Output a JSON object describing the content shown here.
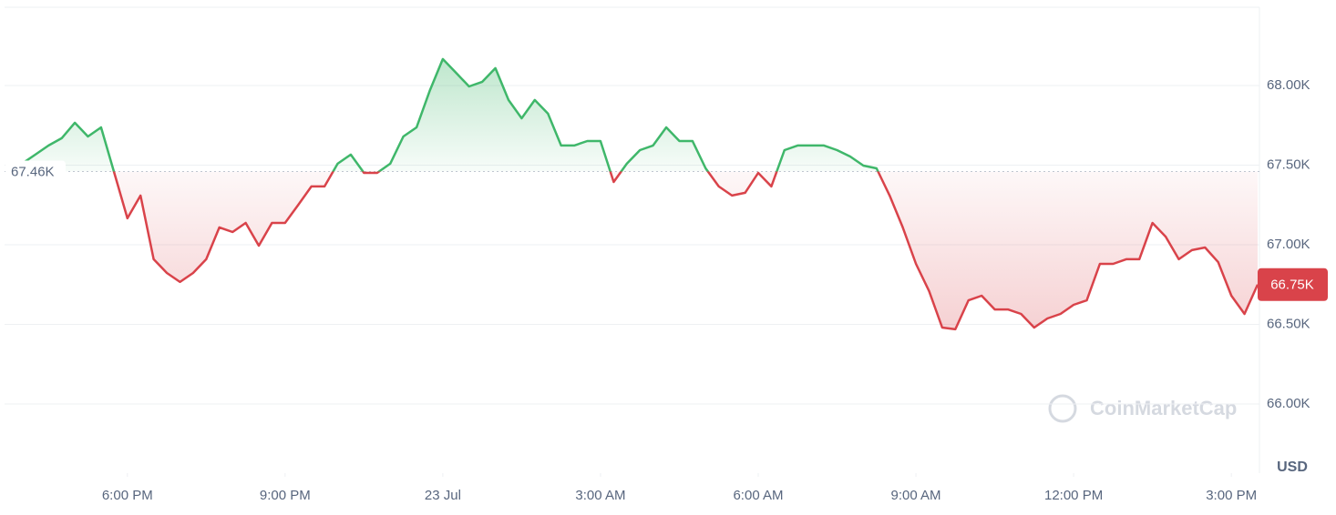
{
  "chart_data": {
    "type": "line",
    "values": [
      67480,
      67510,
      67566,
      67623,
      67669,
      67766,
      67680,
      67737,
      67451,
      67166,
      67309,
      66909,
      66823,
      66766,
      66823,
      66909,
      67109,
      67080,
      67137,
      66994,
      67137,
      67137,
      67251,
      67366,
      67366,
      67509,
      67566,
      67451,
      67451,
      67509,
      67680,
      67737,
      67966,
      68166,
      68080,
      67994,
      68023,
      68109,
      67909,
      67794,
      67909,
      67823,
      67623,
      67623,
      67651,
      67651,
      67394,
      67509,
      67594,
      67623,
      67737,
      67651,
      67651,
      67480,
      67366,
      67309,
      67326,
      67451,
      67366,
      67594,
      67623,
      67623,
      67623,
      67594,
      67554,
      67497,
      67480,
      67309,
      67109,
      66880,
      66709,
      66480,
      66469,
      66651,
      66680,
      66594,
      66594,
      66566,
      66480,
      66537,
      66566,
      66623,
      66651,
      66880,
      66880,
      66909,
      66909,
      67137,
      67051,
      66909,
      66966,
      66983,
      66891,
      66680,
      66566,
      66750
    ],
    "baseline": {
      "value": 67460,
      "label": "67.46K"
    },
    "current": {
      "value": 66750,
      "label": "66.75K"
    },
    "color_up": "#3fb76a",
    "color_down": "#d9434a",
    "ylim": [
      65566,
      68491
    ],
    "yticks": [
      {
        "value": 66000,
        "label": "66.00K"
      },
      {
        "value": 66500,
        "label": "66.50K"
      },
      {
        "value": 67000,
        "label": "67.00K"
      },
      {
        "value": 67500,
        "label": "67.50K"
      },
      {
        "value": 68000,
        "label": "68.00K"
      }
    ],
    "xlim": [
      0,
      95
    ],
    "xticks": [
      {
        "value": 9,
        "label": "6:00 PM"
      },
      {
        "value": 21,
        "label": "9:00 PM"
      },
      {
        "value": 33,
        "label": "23 Jul"
      },
      {
        "value": 45,
        "label": "3:00 AM"
      },
      {
        "value": 57,
        "label": "6:00 AM"
      },
      {
        "value": 69,
        "label": "9:00 AM"
      },
      {
        "value": 81,
        "label": "12:00 PM"
      },
      {
        "value": 93,
        "label": "3:00 PM"
      }
    ],
    "y_unit": "USD",
    "watermark": "CoinMarketCap",
    "grid": true
  }
}
